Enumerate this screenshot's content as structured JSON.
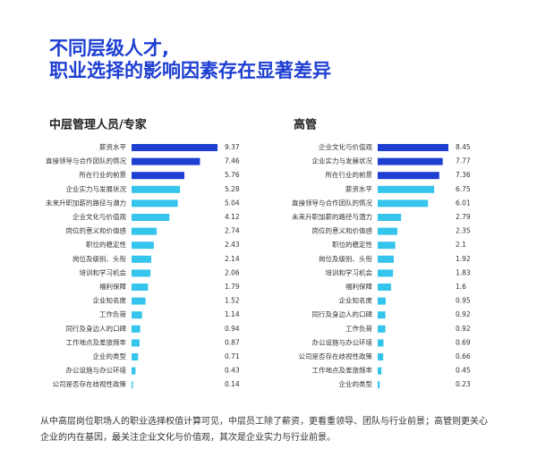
{
  "title": [
    "不同层级人才,",
    "职业选择的影响因素存在显著差异"
  ],
  "footnote": [
    "从中高层岗位职场人的职业选择权值计算可见，中层员工除了薪资，更看重领导、团队与行业前景；高管则更关心",
    "企业的内在基因，最关注企业文化与价值观，其次是企业实力与行业前景。"
  ],
  "chart_data": [
    {
      "type": "bar",
      "orientation": "horizontal",
      "title": "中层管理人员/专家",
      "categories": [
        "薪资水平",
        "直接领导与合作团队的情况",
        "所在行业的前景",
        "企业实力与发展状况",
        "未来升职加薪的路径与潜力",
        "企业文化与价值观",
        "岗位的意义和价值感",
        "职位的稳定性",
        "岗位及级别、头衔",
        "培训和学习机会",
        "福利保障",
        "企业知名度",
        "工作负荷",
        "同行及身边人的口碑",
        "工作地点及差旅频率",
        "企业的类型",
        "办公设施与办公环境",
        "公司是否存在歧视性政策"
      ],
      "values": [
        9.37,
        7.46,
        5.76,
        5.28,
        5.04,
        4.12,
        2.74,
        2.43,
        2.14,
        2.06,
        1.79,
        1.52,
        1.14,
        0.94,
        0.87,
        0.71,
        0.43,
        0.14
      ],
      "colors": [
        "#1e3fd2",
        "#1e3fd2",
        "#1e3fd2",
        "#35c4ec",
        "#35c4ec",
        "#35c4ec",
        "#35c4ec",
        "#35c4ec",
        "#35c4ec",
        "#35c4ec",
        "#35c4ec",
        "#35c4ec",
        "#35c4ec",
        "#35c4ec",
        "#35c4ec",
        "#35c4ec",
        "#35c4ec",
        "#35c4ec"
      ]
    },
    {
      "type": "bar",
      "orientation": "horizontal",
      "title": "高管",
      "categories": [
        "企业文化与价值观",
        "企业实力与发展状况",
        "所在行业的前景",
        "薪资水平",
        "直接领导与合作团队的情况",
        "未来升职加薪的路径与潜力",
        "岗位的意义和价值感",
        "职位的稳定性",
        "岗位及级别、头衔",
        "培训和学习机会",
        "福利保障",
        "企业知名度",
        "同行及身边人的口碑",
        "工作负荷",
        "办公设施与办公环境",
        "公司是否存在歧视性政策",
        "工作地点及差旅频率",
        "企业的类型"
      ],
      "values": [
        8.45,
        7.77,
        7.36,
        6.75,
        6.01,
        2.79,
        2.35,
        2.1,
        1.92,
        1.83,
        1.6,
        0.95,
        0.92,
        0.92,
        0.69,
        0.66,
        0.45,
        0.23
      ],
      "colors": [
        "#1e3fd2",
        "#1e3fd2",
        "#1e3fd2",
        "#35c4ec",
        "#35c4ec",
        "#35c4ec",
        "#35c4ec",
        "#35c4ec",
        "#35c4ec",
        "#35c4ec",
        "#35c4ec",
        "#35c4ec",
        "#35c4ec",
        "#35c4ec",
        "#35c4ec",
        "#35c4ec",
        "#35c4ec",
        "#35c4ec"
      ]
    }
  ]
}
